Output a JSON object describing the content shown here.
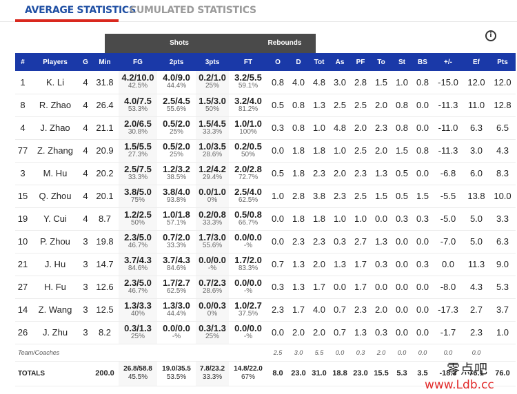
{
  "tabs": {
    "average": "AVERAGE STATISTICS",
    "cumulated": "CUMULATED STATISTICS"
  },
  "info_glyph": "i",
  "groups": {
    "shots": "Shots",
    "rebounds": "Rebounds"
  },
  "columns": [
    "#",
    "Players",
    "G",
    "Min",
    "FG",
    "2pts",
    "3pts",
    "FT",
    "O",
    "D",
    "Tot",
    "As",
    "PF",
    "To",
    "St",
    "BS",
    "+/-",
    "Ef",
    "Pts"
  ],
  "players": [
    {
      "num": "1",
      "name": "K. Li",
      "g": "4",
      "min": "31.8",
      "fg": "4.2/10.0",
      "fg_pct": "42.5%",
      "p2": "4.0/9.0",
      "p2_pct": "44.4%",
      "p3": "0.2/1.0",
      "p3_pct": "25%",
      "ft": "3.2/5.5",
      "ft_pct": "59.1%",
      "o": "0.8",
      "d": "4.0",
      "tot": "4.8",
      "as": "3.0",
      "pf": "2.8",
      "to": "1.5",
      "st": "1.0",
      "bs": "0.8",
      "pm": "-15.0",
      "ef": "12.0",
      "pts": "12.0"
    },
    {
      "num": "8",
      "name": "R. Zhao",
      "g": "4",
      "min": "26.4",
      "fg": "4.0/7.5",
      "fg_pct": "53.3%",
      "p2": "2.5/4.5",
      "p2_pct": "55.6%",
      "p3": "1.5/3.0",
      "p3_pct": "50%",
      "ft": "3.2/4.0",
      "ft_pct": "81.2%",
      "o": "0.5",
      "d": "0.8",
      "tot": "1.3",
      "as": "2.5",
      "pf": "2.5",
      "to": "2.0",
      "st": "0.8",
      "bs": "0.0",
      "pm": "-11.3",
      "ef": "11.0",
      "pts": "12.8"
    },
    {
      "num": "4",
      "name": "J. Zhao",
      "g": "4",
      "min": "21.1",
      "fg": "2.0/6.5",
      "fg_pct": "30.8%",
      "p2": "0.5/2.0",
      "p2_pct": "25%",
      "p3": "1.5/4.5",
      "p3_pct": "33.3%",
      "ft": "1.0/1.0",
      "ft_pct": "100%",
      "o": "0.3",
      "d": "0.8",
      "tot": "1.0",
      "as": "4.8",
      "pf": "2.0",
      "to": "2.3",
      "st": "0.8",
      "bs": "0.0",
      "pm": "-11.0",
      "ef": "6.3",
      "pts": "6.5"
    },
    {
      "num": "77",
      "name": "Z. Zhang",
      "g": "4",
      "min": "20.9",
      "fg": "1.5/5.5",
      "fg_pct": "27.3%",
      "p2": "0.5/2.0",
      "p2_pct": "25%",
      "p3": "1.0/3.5",
      "p3_pct": "28.6%",
      "ft": "0.2/0.5",
      "ft_pct": "50%",
      "o": "0.0",
      "d": "1.8",
      "tot": "1.8",
      "as": "1.0",
      "pf": "2.5",
      "to": "2.0",
      "st": "1.5",
      "bs": "0.8",
      "pm": "-11.3",
      "ef": "3.0",
      "pts": "4.3"
    },
    {
      "num": "3",
      "name": "M. Hu",
      "g": "4",
      "min": "20.2",
      "fg": "2.5/7.5",
      "fg_pct": "33.3%",
      "p2": "1.2/3.2",
      "p2_pct": "38.5%",
      "p3": "1.2/4.2",
      "p3_pct": "29.4%",
      "ft": "2.0/2.8",
      "ft_pct": "72.7%",
      "o": "0.5",
      "d": "1.8",
      "tot": "2.3",
      "as": "2.0",
      "pf": "2.3",
      "to": "1.3",
      "st": "0.5",
      "bs": "0.0",
      "pm": "-6.8",
      "ef": "6.0",
      "pts": "8.3"
    },
    {
      "num": "15",
      "name": "Q. Zhou",
      "g": "4",
      "min": "20.1",
      "fg": "3.8/5.0",
      "fg_pct": "75%",
      "p2": "3.8/4.0",
      "p2_pct": "93.8%",
      "p3": "0.0/1.0",
      "p3_pct": "0%",
      "ft": "2.5/4.0",
      "ft_pct": "62.5%",
      "o": "1.0",
      "d": "2.8",
      "tot": "3.8",
      "as": "2.3",
      "pf": "2.5",
      "to": "1.5",
      "st": "0.5",
      "bs": "1.5",
      "pm": "-5.5",
      "ef": "13.8",
      "pts": "10.0"
    },
    {
      "num": "19",
      "name": "Y. Cui",
      "g": "4",
      "min": "8.7",
      "fg": "1.2/2.5",
      "fg_pct": "50%",
      "p2": "1.0/1.8",
      "p2_pct": "57.1%",
      "p3": "0.2/0.8",
      "p3_pct": "33.3%",
      "ft": "0.5/0.8",
      "ft_pct": "66.7%",
      "o": "0.0",
      "d": "1.8",
      "tot": "1.8",
      "as": "1.0",
      "pf": "1.0",
      "to": "0.0",
      "st": "0.3",
      "bs": "0.3",
      "pm": "-5.0",
      "ef": "5.0",
      "pts": "3.3"
    },
    {
      "num": "10",
      "name": "P. Zhou",
      "g": "3",
      "min": "19.8",
      "fg": "2.3/5.0",
      "fg_pct": "46.7%",
      "p2": "0.7/2.0",
      "p2_pct": "33.3%",
      "p3": "1.7/3.0",
      "p3_pct": "55.6%",
      "ft": "0.0/0.0",
      "ft_pct": "-%",
      "o": "0.0",
      "d": "2.3",
      "tot": "2.3",
      "as": "0.3",
      "pf": "2.7",
      "to": "1.3",
      "st": "0.0",
      "bs": "0.0",
      "pm": "-7.0",
      "ef": "5.0",
      "pts": "6.3"
    },
    {
      "num": "21",
      "name": "J. Hu",
      "g": "3",
      "min": "14.7",
      "fg": "3.7/4.3",
      "fg_pct": "84.6%",
      "p2": "3.7/4.3",
      "p2_pct": "84.6%",
      "p3": "0.0/0.0",
      "p3_pct": "-%",
      "ft": "1.7/2.0",
      "ft_pct": "83.3%",
      "o": "0.7",
      "d": "1.3",
      "tot": "2.0",
      "as": "1.3",
      "pf": "1.7",
      "to": "0.3",
      "st": "0.0",
      "bs": "0.3",
      "pm": "0.0",
      "ef": "11.3",
      "pts": "9.0"
    },
    {
      "num": "27",
      "name": "H. Fu",
      "g": "3",
      "min": "12.6",
      "fg": "2.3/5.0",
      "fg_pct": "46.7%",
      "p2": "1.7/2.7",
      "p2_pct": "62.5%",
      "p3": "0.7/2.3",
      "p3_pct": "28.6%",
      "ft": "0.0/0.0",
      "ft_pct": "-%",
      "o": "0.3",
      "d": "1.3",
      "tot": "1.7",
      "as": "0.0",
      "pf": "1.7",
      "to": "0.0",
      "st": "0.0",
      "bs": "0.0",
      "pm": "-8.0",
      "ef": "4.3",
      "pts": "5.3"
    },
    {
      "num": "14",
      "name": "Z. Wang",
      "g": "3",
      "min": "12.5",
      "fg": "1.3/3.3",
      "fg_pct": "40%",
      "p2": "1.3/3.0",
      "p2_pct": "44.4%",
      "p3": "0.0/0.3",
      "p3_pct": "0%",
      "ft": "1.0/2.7",
      "ft_pct": "37.5%",
      "o": "2.3",
      "d": "1.7",
      "tot": "4.0",
      "as": "0.7",
      "pf": "2.3",
      "to": "2.0",
      "st": "0.0",
      "bs": "0.0",
      "pm": "-17.3",
      "ef": "2.7",
      "pts": "3.7"
    },
    {
      "num": "26",
      "name": "J. Zhu",
      "g": "3",
      "min": "8.2",
      "fg": "0.3/1.3",
      "fg_pct": "25%",
      "p2": "0.0/0.0",
      "p2_pct": "-%",
      "p3": "0.3/1.3",
      "p3_pct": "25%",
      "ft": "0.0/0.0",
      "ft_pct": "-%",
      "o": "0.0",
      "d": "2.0",
      "tot": "2.0",
      "as": "0.7",
      "pf": "1.3",
      "to": "0.3",
      "st": "0.0",
      "bs": "0.0",
      "pm": "-1.7",
      "ef": "2.3",
      "pts": "1.0"
    }
  ],
  "team": {
    "label": "Team/Coaches",
    "o": "2.5",
    "d": "3.0",
    "tot": "5.5",
    "as": "0.0",
    "pf": "0.3",
    "to": "2.0",
    "st": "0.0",
    "bs": "0.0",
    "pm": "0.0",
    "ef": "0.0"
  },
  "totals": {
    "label": "TOTALS",
    "min": "200.0",
    "fg": "26.8/58.8",
    "fg_pct": "45.5%",
    "p2": "19.0/35.5",
    "p2_pct": "53.5%",
    "p3": "7.8/23.2",
    "p3_pct": "33.3%",
    "ft": "14.8/22.0",
    "ft_pct": "67%",
    "o": "8.0",
    "d": "23.0",
    "tot": "31.0",
    "as": "18.8",
    "pf": "23.0",
    "to": "15.5",
    "st": "5.3",
    "bs": "3.5",
    "pm": "-18.3",
    "ef": "76.1",
    "pts": "76.0"
  },
  "watermark": {
    "cn": "零点吧",
    "url": "www.Ldb.cc"
  }
}
